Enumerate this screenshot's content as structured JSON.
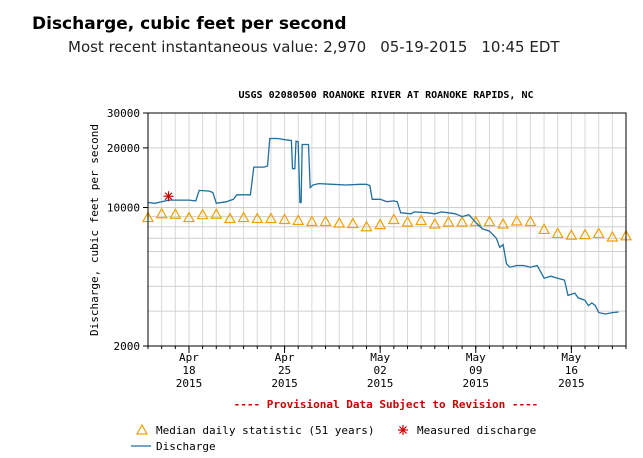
{
  "header": {
    "title": "Discharge, cubic feet per second",
    "subtitle_label": "Most recent instantaneous value:",
    "recent_value": "2,970",
    "recent_date": "05-19-2015",
    "recent_time": "10:45 EDT"
  },
  "chart_data": {
    "type": "line",
    "title": "USGS 02080500 ROANOKE RIVER AT ROANOKE RAPIDS, NC",
    "ylabel": "Discharge, cubic feet per second",
    "xlabel": "",
    "yscale": "log",
    "ylim": [
      2000,
      30000
    ],
    "yticks": [
      "2000",
      "10000",
      "20000",
      "30000"
    ],
    "xlim": [
      "2015-04-15",
      "2015-05-20"
    ],
    "xticks": [
      {
        "date": "2015-04-18",
        "l1": "Apr",
        "l2": "18",
        "l3": "2015"
      },
      {
        "date": "2015-04-25",
        "l1": "Apr",
        "l2": "25",
        "l3": "2015"
      },
      {
        "date": "2015-05-02",
        "l1": "May",
        "l2": "02",
        "l3": "2015"
      },
      {
        "date": "2015-05-09",
        "l1": "May",
        "l2": "09",
        "l3": "2015"
      },
      {
        "date": "2015-05-16",
        "l1": "May",
        "l2": "16",
        "l3": "2015"
      }
    ],
    "grid": true,
    "provisional_note": "---- Provisional Data Subject to Revision ----",
    "colors": {
      "discharge": "#1f6f9f",
      "median": "#f0a000",
      "measured": "#cc0000",
      "note": "#cc0000"
    },
    "legend": {
      "median": "Median daily statistic (51 years)",
      "measured": "Measured discharge",
      "discharge": "Discharge"
    },
    "series": [
      {
        "name": "Discharge",
        "points": [
          [
            "2015-04-15 00:00",
            10600
          ],
          [
            "2015-04-15 12:00",
            10500
          ],
          [
            "2015-04-16 00:00",
            10700
          ],
          [
            "2015-04-16 12:00",
            10900
          ],
          [
            "2015-04-17 00:00",
            10900
          ],
          [
            "2015-04-18 00:00",
            10900
          ],
          [
            "2015-04-18 12:00",
            10800
          ],
          [
            "2015-04-18 18:00",
            12200
          ],
          [
            "2015-04-19 12:00",
            12100
          ],
          [
            "2015-04-19 18:00",
            11900
          ],
          [
            "2015-04-20 00:00",
            10500
          ],
          [
            "2015-04-20 18:00",
            10700
          ],
          [
            "2015-04-21 06:00",
            11000
          ],
          [
            "2015-04-21 12:00",
            11600
          ],
          [
            "2015-04-22 06:00",
            11600
          ],
          [
            "2015-04-22 12:00",
            11600
          ],
          [
            "2015-04-22 18:00",
            16000
          ],
          [
            "2015-04-23 12:00",
            16000
          ],
          [
            "2015-04-23 18:00",
            16200
          ],
          [
            "2015-04-23 22:00",
            22300
          ],
          [
            "2015-04-24 12:00",
            22300
          ],
          [
            "2015-04-25 00:00",
            22000
          ],
          [
            "2015-04-25 12:00",
            21800
          ],
          [
            "2015-04-25 14:00",
            15700
          ],
          [
            "2015-04-25 18:00",
            15700
          ],
          [
            "2015-04-25 20:00",
            21600
          ],
          [
            "2015-04-26 00:00",
            21500
          ],
          [
            "2015-04-26 03:00",
            10600
          ],
          [
            "2015-04-26 05:00",
            10600
          ],
          [
            "2015-04-26 07:00",
            20800
          ],
          [
            "2015-04-26 18:00",
            20800
          ],
          [
            "2015-04-26 21:00",
            12600
          ],
          [
            "2015-04-27 02:00",
            13000
          ],
          [
            "2015-04-27 12:00",
            13200
          ],
          [
            "2015-04-28 12:00",
            13100
          ],
          [
            "2015-04-29 12:00",
            13000
          ],
          [
            "2015-04-30 12:00",
            13100
          ],
          [
            "2015-05-01 00:00",
            13100
          ],
          [
            "2015-05-01 06:00",
            12900
          ],
          [
            "2015-05-01 10:00",
            11000
          ],
          [
            "2015-05-02 00:00",
            11000
          ],
          [
            "2015-05-02 12:00",
            10700
          ],
          [
            "2015-05-03 00:00",
            10800
          ],
          [
            "2015-05-03 06:00",
            10700
          ],
          [
            "2015-05-03 12:00",
            9400
          ],
          [
            "2015-05-04 06:00",
            9300
          ],
          [
            "2015-05-04 12:00",
            9500
          ],
          [
            "2015-05-05 12:00",
            9400
          ],
          [
            "2015-05-06 00:00",
            9300
          ],
          [
            "2015-05-06 12:00",
            9500
          ],
          [
            "2015-05-07 00:00",
            9400
          ],
          [
            "2015-05-07 12:00",
            9300
          ],
          [
            "2015-05-08 00:00",
            9000
          ],
          [
            "2015-05-08 12:00",
            9200
          ],
          [
            "2015-05-09 00:00",
            8400
          ],
          [
            "2015-05-09 12:00",
            7800
          ],
          [
            "2015-05-10 00:00",
            7600
          ],
          [
            "2015-05-10 12:00",
            7000
          ],
          [
            "2015-05-10 18:00",
            6300
          ],
          [
            "2015-05-11 00:00",
            6500
          ],
          [
            "2015-05-11 06:00",
            5200
          ],
          [
            "2015-05-11 12:00",
            5000
          ],
          [
            "2015-05-12 00:00",
            5100
          ],
          [
            "2015-05-12 12:00",
            5100
          ],
          [
            "2015-05-13 00:00",
            5000
          ],
          [
            "2015-05-13 12:00",
            5100
          ],
          [
            "2015-05-14 00:00",
            4400
          ],
          [
            "2015-05-14 12:00",
            4500
          ],
          [
            "2015-05-15 00:00",
            4400
          ],
          [
            "2015-05-15 12:00",
            4300
          ],
          [
            "2015-05-15 18:00",
            3600
          ],
          [
            "2015-05-16 06:00",
            3700
          ],
          [
            "2015-05-16 12:00",
            3500
          ],
          [
            "2015-05-17 00:00",
            3400
          ],
          [
            "2015-05-17 06:00",
            3200
          ],
          [
            "2015-05-17 12:00",
            3300
          ],
          [
            "2015-05-17 18:00",
            3200
          ],
          [
            "2015-05-18 00:00",
            2950
          ],
          [
            "2015-05-18 12:00",
            2900
          ],
          [
            "2015-05-19 00:00",
            2950
          ],
          [
            "2015-05-19 10:45",
            2970
          ]
        ]
      },
      {
        "name": "Median daily statistic (51 years)",
        "dates": [
          "2015-04-15",
          "2015-04-16",
          "2015-04-17",
          "2015-04-18",
          "2015-04-19",
          "2015-04-20",
          "2015-04-21",
          "2015-04-22",
          "2015-04-23",
          "2015-04-24",
          "2015-04-25",
          "2015-04-26",
          "2015-04-27",
          "2015-04-28",
          "2015-04-29",
          "2015-04-30",
          "2015-05-01",
          "2015-05-02",
          "2015-05-03",
          "2015-05-04",
          "2015-05-05",
          "2015-05-06",
          "2015-05-07",
          "2015-05-08",
          "2015-05-09",
          "2015-05-10",
          "2015-05-11",
          "2015-05-12",
          "2015-05-13",
          "2015-05-14",
          "2015-05-15",
          "2015-05-16",
          "2015-05-17",
          "2015-05-18",
          "2015-05-19",
          "2015-05-20"
        ],
        "values": [
          8900,
          9300,
          9250,
          8900,
          9200,
          9250,
          8800,
          8900,
          8800,
          8800,
          8700,
          8600,
          8500,
          8500,
          8350,
          8300,
          8000,
          8200,
          8700,
          8450,
          8600,
          8250,
          8450,
          8450,
          8500,
          8500,
          8250,
          8550,
          8500,
          7750,
          7400,
          7250,
          7300,
          7400,
          7100,
          7200
        ]
      },
      {
        "name": "Measured discharge",
        "points": [
          [
            "2015-04-16 12:00",
            11400
          ]
        ]
      }
    ]
  }
}
